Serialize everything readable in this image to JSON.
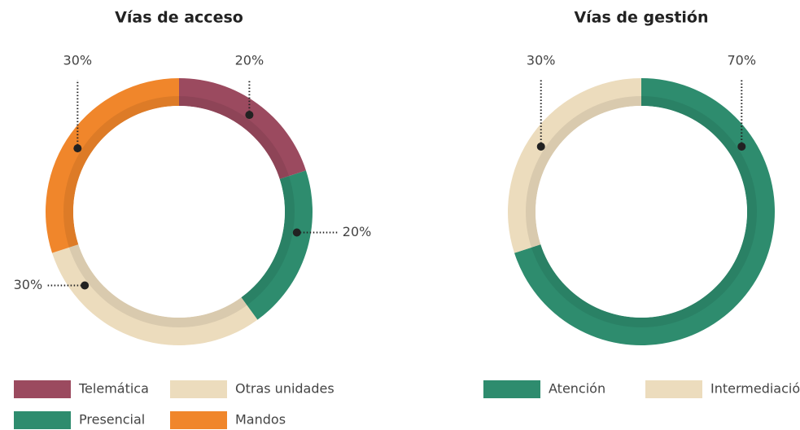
{
  "chart_data": [
    {
      "type": "donut",
      "title": "Vías de acceso",
      "categories": [
        "Telemática",
        "Presencial",
        "Otras unidades",
        "Mandos"
      ],
      "values": [
        20,
        20,
        30,
        30
      ],
      "value_labels": [
        "20%",
        "20%",
        "30%",
        "30%"
      ],
      "colors": [
        "#9b4a5f",
        "#2e8c6e",
        "#ecdcbd",
        "#f0862b"
      ]
    },
    {
      "type": "donut",
      "title": "Vías de gestión",
      "categories": [
        "Atención",
        "Intermediación"
      ],
      "values": [
        70,
        30
      ],
      "value_labels": [
        "70%",
        "30%"
      ],
      "colors": [
        "#2e8c6e",
        "#ecdcbd"
      ]
    }
  ]
}
